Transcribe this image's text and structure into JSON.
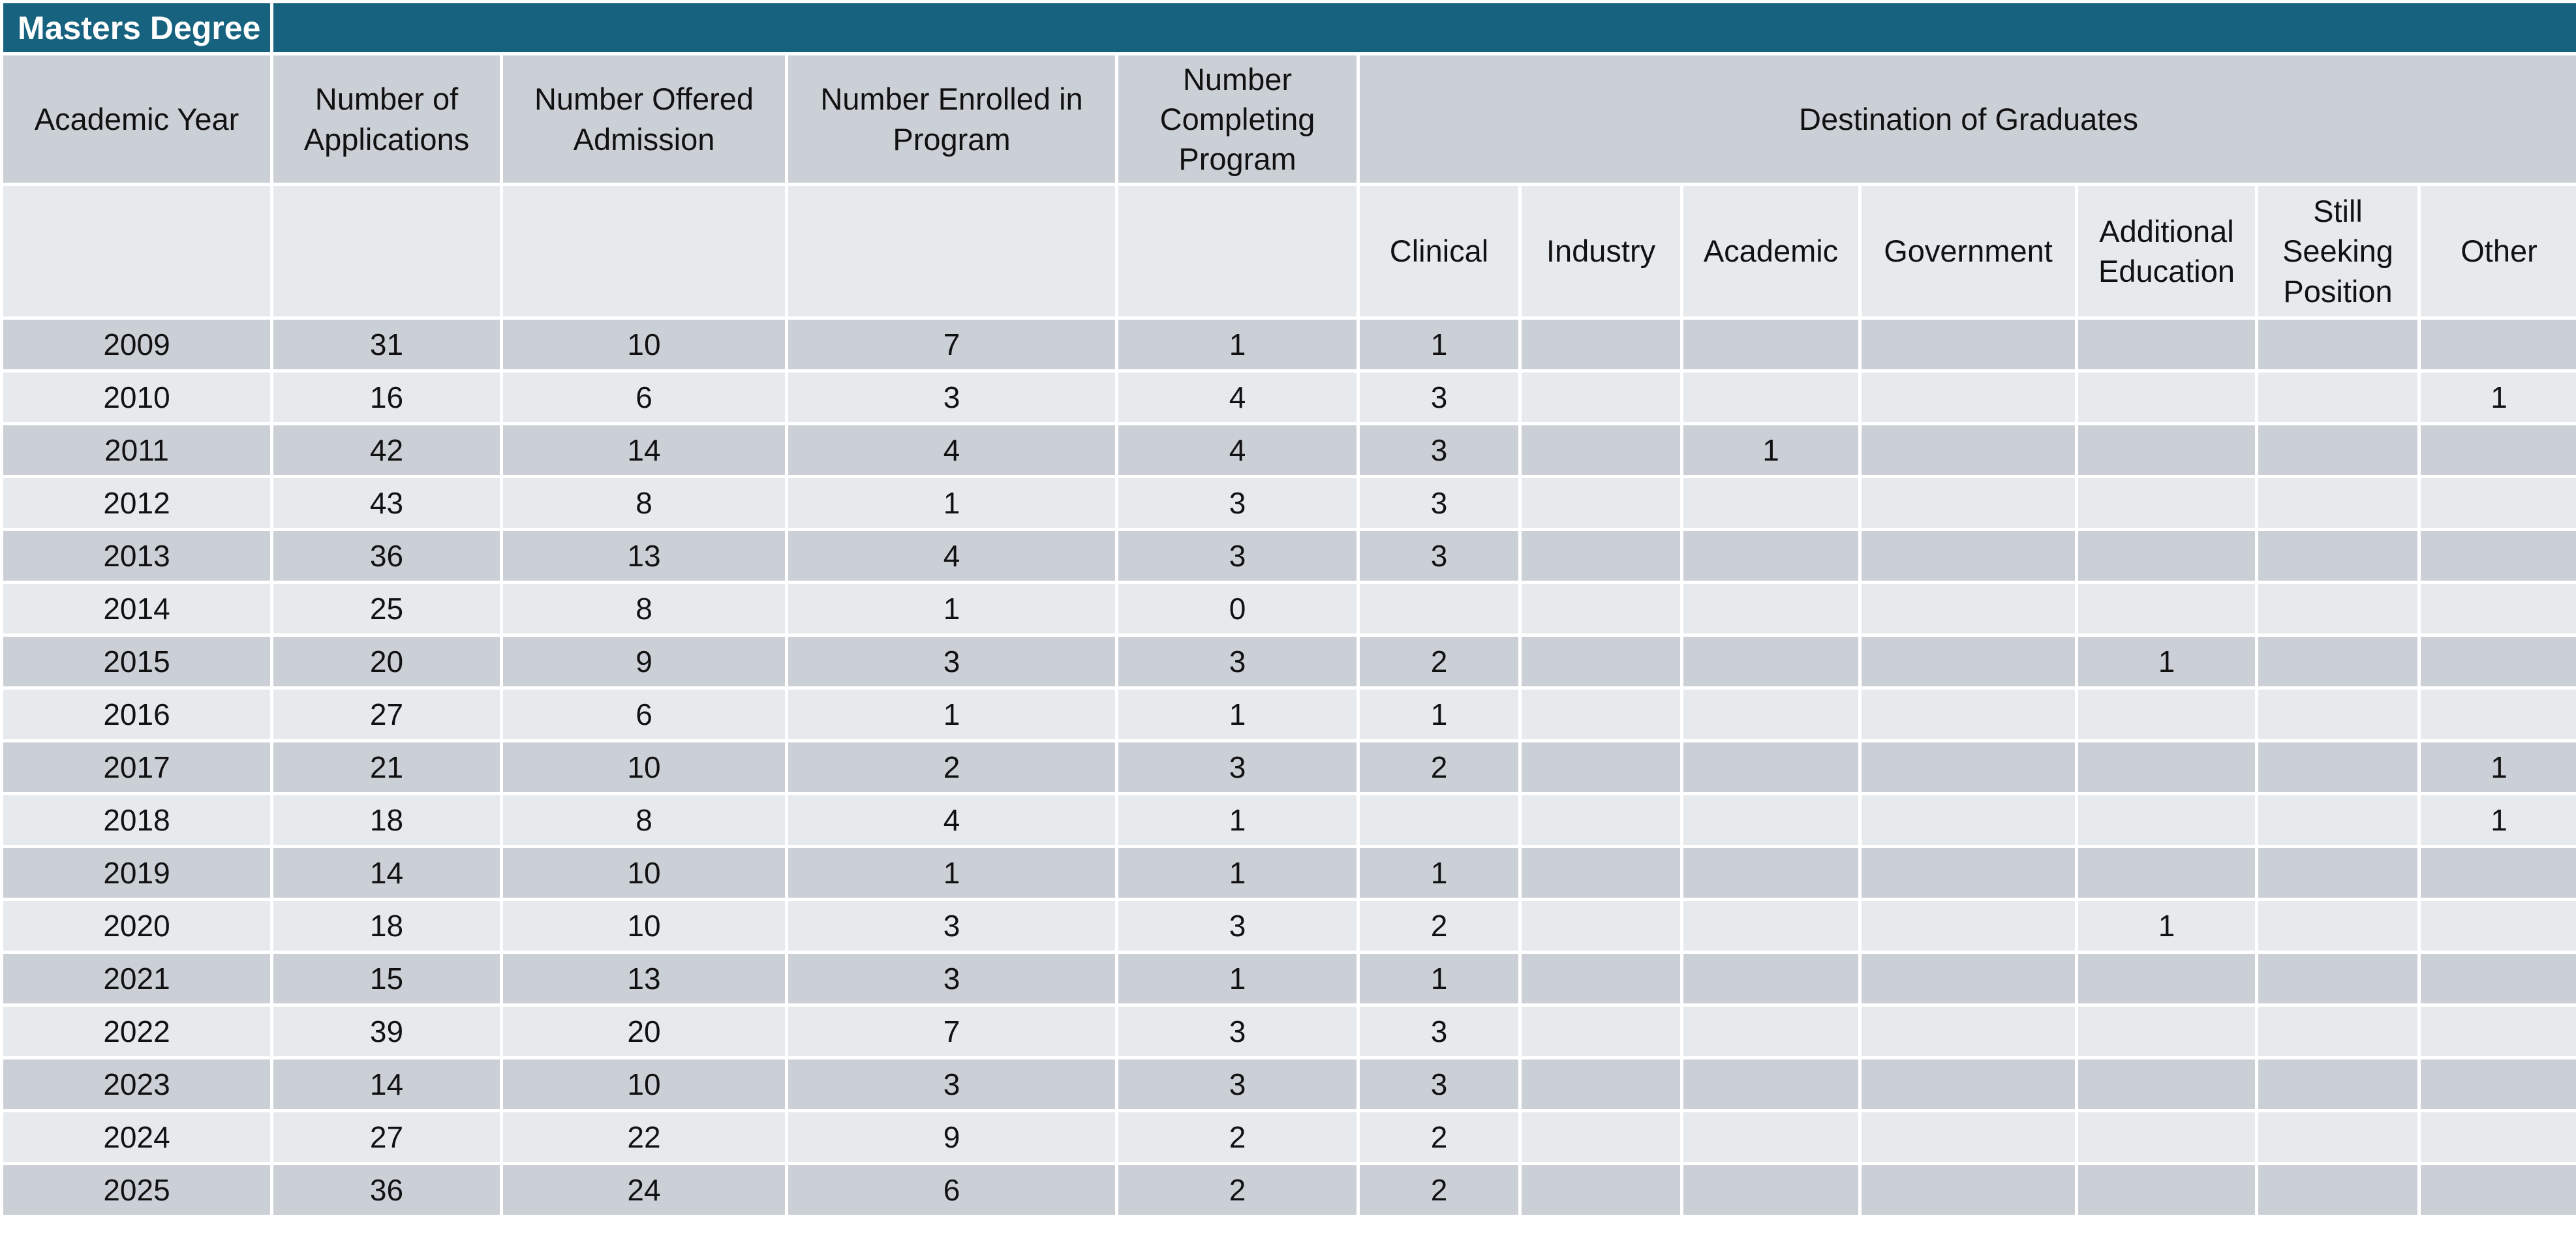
{
  "title": "Masters Degree",
  "headers": {
    "academic_year": "Academic Year",
    "applications": "Number of Applications",
    "offered": "Number Offered Admission",
    "enrolled": "Number Enrolled in Program",
    "completing": "Number Completing Program",
    "destination": "Destination of Graduates"
  },
  "destination_subheaders": [
    "Clinical",
    "Industry",
    "Academic",
    "Government",
    "Additional Education",
    "Still Seeking Position",
    "Other"
  ],
  "rows": [
    {
      "year": "2009",
      "cells": [
        "31",
        "10",
        "7",
        "1",
        "1",
        "",
        "",
        "",
        "",
        "",
        ""
      ]
    },
    {
      "year": "2010",
      "cells": [
        "16",
        "6",
        "3",
        "4",
        "3",
        "",
        "",
        "",
        "",
        "",
        "1"
      ]
    },
    {
      "year": "2011",
      "cells": [
        "42",
        "14",
        "4",
        "4",
        "3",
        "",
        "1",
        "",
        "",
        "",
        ""
      ]
    },
    {
      "year": "2012",
      "cells": [
        "43",
        "8",
        "1",
        "3",
        "3",
        "",
        "",
        "",
        "",
        "",
        ""
      ]
    },
    {
      "year": "2013",
      "cells": [
        "36",
        "13",
        "4",
        "3",
        "3",
        "",
        "",
        "",
        "",
        "",
        ""
      ]
    },
    {
      "year": "2014",
      "cells": [
        "25",
        "8",
        "1",
        "0",
        "",
        "",
        "",
        "",
        "",
        "",
        ""
      ]
    },
    {
      "year": "2015",
      "cells": [
        "20",
        "9",
        "3",
        "3",
        "2",
        "",
        "",
        "",
        "1",
        "",
        ""
      ]
    },
    {
      "year": "2016",
      "cells": [
        "27",
        "6",
        "1",
        "1",
        "1",
        "",
        "",
        "",
        "",
        "",
        ""
      ]
    },
    {
      "year": "2017",
      "cells": [
        "21",
        "10",
        "2",
        "3",
        "2",
        "",
        "",
        "",
        "",
        "",
        "1"
      ]
    },
    {
      "year": "2018",
      "cells": [
        "18",
        "8",
        "4",
        "1",
        "",
        "",
        "",
        "",
        "",
        "",
        "1"
      ]
    },
    {
      "year": "2019",
      "cells": [
        "14",
        "10",
        "1",
        "1",
        "1",
        "",
        "",
        "",
        "",
        "",
        ""
      ]
    },
    {
      "year": "2020",
      "cells": [
        "18",
        "10",
        "3",
        "3",
        "2",
        "",
        "",
        "",
        "1",
        "",
        ""
      ]
    },
    {
      "year": "2021",
      "cells": [
        "15",
        "13",
        "3",
        "1",
        "1",
        "",
        "",
        "",
        "",
        "",
        ""
      ]
    },
    {
      "year": "2022",
      "cells": [
        "39",
        "20",
        "7",
        "3",
        "3",
        "",
        "",
        "",
        "",
        "",
        ""
      ]
    },
    {
      "year": "2023",
      "cells": [
        "14",
        "10",
        "3",
        "3",
        "3",
        "",
        "",
        "",
        "",
        "",
        ""
      ]
    },
    {
      "year": "2024",
      "cells": [
        "27",
        "22",
        "9",
        "2",
        "2",
        "",
        "",
        "",
        "",
        "",
        ""
      ]
    },
    {
      "year": "2025",
      "cells": [
        "36",
        "24",
        "6",
        "2",
        "2",
        "",
        "",
        "",
        "",
        "",
        ""
      ]
    }
  ],
  "colors": {
    "title_bar": "#17627f",
    "row_dark": "#cbd0d7",
    "row_light": "#e6eaed",
    "grid_lines": "#ffffff"
  }
}
